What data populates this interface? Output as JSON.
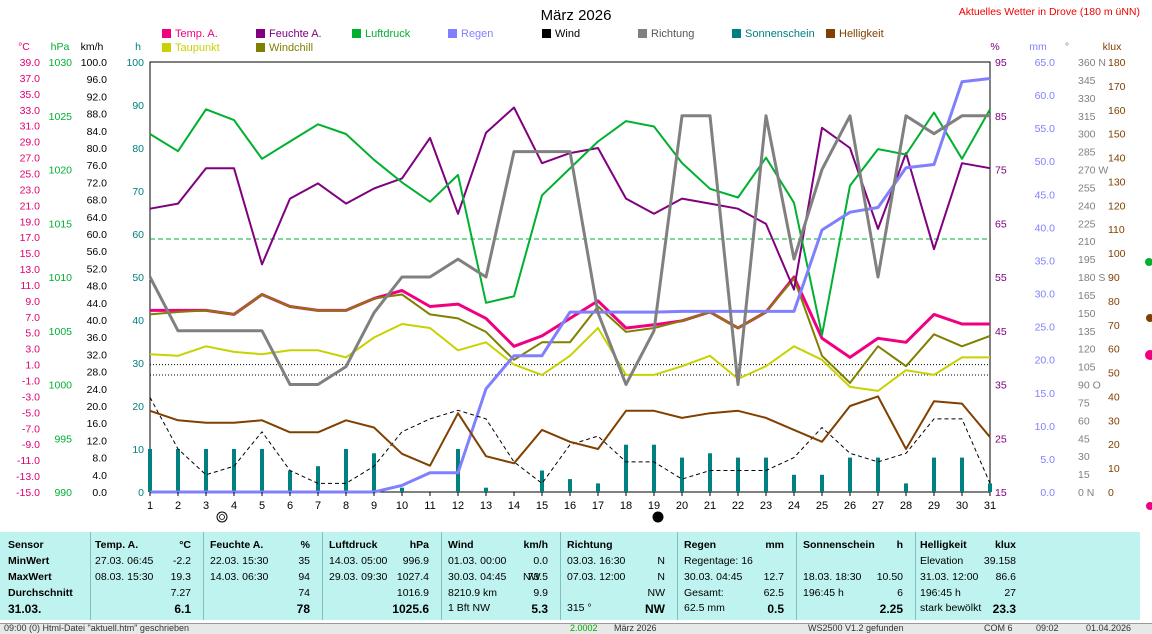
{
  "header": {
    "title": "März 2026",
    "site": "Aktuelles Wetter in Drove (180 m üNN)"
  },
  "legend": [
    {
      "label": "Temp. A.",
      "color": "#f00080"
    },
    {
      "label": "Taupunkt",
      "color": "#c8d200"
    },
    {
      "label": "Feuchte A.",
      "color": "#800080"
    },
    {
      "label": "Windchill",
      "color": "#808000"
    },
    {
      "label": "Luftdruck",
      "color": "#00b030"
    },
    {
      "label": "Regen",
      "color": "#8080ff"
    },
    {
      "label": "Wind",
      "color": "#000000"
    },
    {
      "label": "Richtung",
      "color": "#808080"
    },
    {
      "label": "Sonnenschein",
      "color": "#008080"
    },
    {
      "label": "Helligkeit",
      "color": "#804000"
    }
  ],
  "chart_data": {
    "type": "line",
    "x": [
      1,
      2,
      3,
      4,
      5,
      6,
      7,
      8,
      9,
      10,
      11,
      12,
      13,
      14,
      15,
      16,
      17,
      18,
      19,
      20,
      21,
      22,
      23,
      24,
      25,
      26,
      27,
      28,
      29,
      30,
      31
    ],
    "axes": {
      "temp_c": {
        "unit": "°C",
        "range": [
          -15,
          39
        ],
        "ticks": [
          "39.0",
          "37.0",
          "35.0",
          "33.0",
          "31.0",
          "29.0",
          "27.0",
          "25.0",
          "23.0",
          "21.0",
          "19.0",
          "17.0",
          "15.0",
          "13.0",
          "11.0",
          "9.0",
          "7.0",
          "5.0",
          "3.0",
          "1.0",
          "-1.0",
          "-3.0",
          "-5.0",
          "-7.0",
          "-9.0",
          "-11.0",
          "-13.0",
          "-15.0"
        ]
      },
      "pressure_hpa": {
        "unit": "hPa",
        "range": [
          990,
          1030
        ],
        "ticks": [
          "1030",
          "1025",
          "1020",
          "1015",
          "1010",
          "1005",
          "1000",
          "995",
          "990"
        ]
      },
      "wind_kmh": {
        "unit": "km/h",
        "range": [
          0,
          100
        ],
        "ticks": [
          "100.0",
          "96.0",
          "92.0",
          "88.0",
          "84.0",
          "80.0",
          "76.0",
          "72.0",
          "68.0",
          "64.0",
          "60.0",
          "56.0",
          "52.0",
          "48.0",
          "44.0",
          "40.0",
          "36.0",
          "32.0",
          "28.0",
          "24.0",
          "20.0",
          "16.0",
          "12.0",
          "8.0",
          "4.0",
          "0.0"
        ]
      },
      "sun_h": {
        "unit": "h",
        "range": [
          0,
          100
        ],
        "ticks": [
          "100",
          "90",
          "80",
          "70",
          "60",
          "50",
          "40",
          "30",
          "20",
          "10",
          "0"
        ]
      },
      "humidity_pct": {
        "unit": "%",
        "range": [
          15,
          100
        ],
        "ticks": [
          "95",
          "85",
          "75",
          "65",
          "55",
          "45",
          "35",
          "25",
          "15"
        ]
      },
      "rain_mm": {
        "unit": "mm",
        "range": [
          0,
          65
        ],
        "ticks": [
          "65.0",
          "60.0",
          "55.0",
          "50.0",
          "45.0",
          "40.0",
          "35.0",
          "30.0",
          "25.0",
          "20.0",
          "15.0",
          "10.0",
          "5.0",
          "0.0"
        ]
      },
      "direction_deg": {
        "unit": "°",
        "range": [
          0,
          360
        ],
        "ticks": [
          "360 N",
          "345",
          "330",
          "315",
          "300",
          "285",
          "270 W",
          "255",
          "240",
          "225",
          "210",
          "195",
          "180 S",
          "165",
          "150",
          "135",
          "120",
          "105",
          "90 O",
          "75",
          "60",
          "45",
          "30",
          "15",
          "0 N"
        ]
      },
      "brightness_klux": {
        "unit": "klux",
        "range": [
          0,
          180
        ],
        "ticks": [
          "180",
          "170",
          "160",
          "150",
          "140",
          "130",
          "120",
          "110",
          "100",
          "90",
          "80",
          "70",
          "60",
          "50",
          "40",
          "30",
          "20",
          "10",
          "0"
        ]
      }
    },
    "series": [
      {
        "name": "Temp. A.",
        "axis": "temp_c",
        "color": "#f00080",
        "width": 3,
        "values": [
          7.8,
          7.8,
          7.8,
          7.3,
          9.8,
          8.3,
          7.8,
          7.8,
          9.3,
          10.3,
          8.3,
          8.6,
          6.8,
          3.3,
          4.6,
          6.8,
          9.0,
          5.6,
          6.0,
          6.5,
          7.6,
          5.6,
          7.6,
          12.0,
          4.3,
          1.9,
          4.3,
          3.8,
          7.3,
          6.1,
          6.1
        ]
      },
      {
        "name": "Taupunkt",
        "axis": "temp_c",
        "color": "#c8d200",
        "width": 2,
        "values": [
          2.3,
          2.1,
          3.3,
          2.6,
          2.3,
          2.8,
          2.8,
          1.9,
          4.4,
          6.1,
          5.6,
          2.8,
          3.8,
          1.0,
          -0.3,
          2.1,
          5.6,
          -0.3,
          -0.3,
          0.8,
          2.1,
          -0.8,
          0.8,
          3.3,
          1.6,
          -1.8,
          -2.3,
          0.3,
          -0.3,
          1.9,
          1.9
        ]
      },
      {
        "name": "Windchill",
        "axis": "temp_c",
        "color": "#808000",
        "width": 2,
        "values": [
          7.3,
          7.6,
          7.8,
          7.3,
          9.8,
          8.3,
          7.8,
          7.8,
          9.3,
          9.8,
          7.3,
          6.8,
          5.1,
          1.6,
          3.8,
          3.8,
          8.3,
          5.1,
          5.6,
          6.5,
          7.6,
          5.6,
          7.6,
          11.8,
          2.1,
          -1.3,
          3.3,
          0.8,
          4.8,
          3.3,
          4.6
        ]
      },
      {
        "name": "Feuchte A.",
        "axis": "humidity_pct",
        "color": "#800080",
        "width": 2,
        "values": [
          71,
          72,
          79,
          79,
          60,
          73,
          76,
          72,
          75,
          77,
          85,
          70,
          86,
          91,
          80,
          82,
          83,
          73,
          70,
          73,
          72,
          71,
          68,
          55,
          87,
          83,
          67,
          82,
          63,
          80,
          79
        ]
      },
      {
        "name": "Luftdruck",
        "axis": "pressure_hpa",
        "color": "#00b030",
        "width": 2,
        "values": [
          1023.3,
          1021.7,
          1025.6,
          1024.6,
          1021.0,
          1022.6,
          1024.2,
          1023.3,
          1020.9,
          1018.8,
          1017.0,
          1019.5,
          1007.6,
          1008.2,
          1017.6,
          1020.1,
          1022.6,
          1024.5,
          1024.0,
          1020.6,
          1018.2,
          1017.4,
          1021.1,
          1016.9,
          1004.6,
          1018.5,
          1021.9,
          1021.4,
          1025.3,
          1021.0,
          1025.6
        ]
      },
      {
        "name": "Regen",
        "axis": "rain_mm",
        "color": "#8080ff",
        "width": 3,
        "values": [
          0,
          0,
          0,
          0,
          0,
          0,
          0,
          0,
          0,
          1.0,
          2.9,
          2.9,
          15.6,
          20.6,
          20.6,
          27.2,
          27.2,
          27.2,
          27.2,
          27.3,
          27.3,
          27.3,
          27.3,
          27.3,
          39.6,
          42.3,
          43.0,
          49.0,
          49.5,
          62.0,
          62.5
        ]
      },
      {
        "name": "Richtung",
        "axis": "direction_deg",
        "color": "#808080",
        "width": 3,
        "values": [
          180,
          135,
          135,
          135,
          135,
          90,
          90,
          105,
          150,
          180,
          180,
          195,
          180,
          285,
          285,
          285,
          150,
          90,
          135,
          315,
          315,
          90,
          315,
          195,
          270,
          315,
          180,
          315,
          300,
          315,
          315
        ]
      },
      {
        "name": "Wind",
        "axis": "wind_kmh",
        "color": "#000000",
        "width": 1,
        "dashed": true,
        "values": [
          22,
          10,
          4,
          6,
          14,
          5,
          2,
          2,
          6,
          14,
          17,
          19,
          17,
          7,
          2,
          11,
          13,
          7,
          7,
          3,
          5,
          5,
          5,
          8,
          15,
          9,
          7,
          9,
          17,
          17,
          2
        ]
      },
      {
        "name": "Helligkeit",
        "axis": "brightness_klux",
        "color": "#804000",
        "width": 2,
        "values": [
          34,
          30,
          29,
          29,
          30,
          25,
          25,
          30,
          27,
          16,
          11,
          33,
          15,
          12,
          26,
          21,
          18,
          34,
          34,
          31,
          33,
          34,
          31,
          26,
          21,
          36,
          40,
          18,
          38,
          37,
          23
        ]
      },
      {
        "name": "Sonnenschein",
        "axis": "sun_h",
        "color": "#008080",
        "type": "bar",
        "values": [
          10,
          10,
          10,
          10,
          10,
          5,
          6,
          10,
          9,
          1,
          0,
          10,
          1,
          0,
          5,
          3,
          2,
          11,
          11,
          8,
          9,
          8,
          8,
          4,
          4,
          8,
          8,
          2,
          8,
          8,
          2
        ]
      }
    ],
    "reference_lines": [
      {
        "axis": "humidity_pct",
        "value": 65,
        "color": "#00b030",
        "dashed": true
      },
      {
        "axis": "temp_c",
        "value": 1.0,
        "color": "#000000",
        "dotted": true
      },
      {
        "axis": "temp_c",
        "value": -0.3,
        "color": "#000000",
        "dotted": true
      }
    ],
    "grid": false
  },
  "stats": {
    "col0": {
      "h": "Sensor",
      "r1": "MinWert",
      "r2": "MaxWert",
      "r3": "Durchschnitt",
      "r4": "31.03."
    },
    "temp": {
      "h": "Temp. A.",
      "u": "°C",
      "min_t": "27.03.  06:45",
      "min_v": "-2.2",
      "max_t": "08.03.  15:30",
      "max_v": "19.3",
      "avg": "7.27",
      "cur": "6.1"
    },
    "hum": {
      "h": "Feuchte A.",
      "u": "%",
      "min_t": "22.03.  15:30",
      "min_v": "35",
      "max_t": "14.03.  06:30",
      "max_v": "94",
      "avg": "74",
      "cur": "78"
    },
    "press": {
      "h": "Luftdruck",
      "u": "hPa",
      "min_t": "14.03.  05:00",
      "min_v": "996.9",
      "max_t": "29.03.  09:30",
      "max_v": "1027.4",
      "avg": "1016.9",
      "cur": "1025.6"
    },
    "wind": {
      "h": "Wind",
      "u": "km/h",
      "min_t": "01.03.  00:00",
      "min_v": "0.0",
      "max_t": "30.03.  04:45",
      "max_v": "73.5",
      "max_dir": "NW",
      "avg_km": "8210.9 km",
      "avg": "9.9",
      "cur_bft": "1 Bft NW",
      "cur": "5.3"
    },
    "dir": {
      "h": "Richtung",
      "min_t": "03.03.  16:30",
      "min_v": "N",
      "max_t": "07.03.  12:00",
      "max_v": "N",
      "avg": "NW",
      "cur_deg": "315 °",
      "cur": "NW"
    },
    "rain": {
      "h": "Regen",
      "u": "mm",
      "r1a": "Regentage: 16",
      "max_t": "30.03.  04:45",
      "max_v": "12.7",
      "tot_l": "Gesamt:",
      "tot_v": "62.5",
      "cur_l": "62.5 mm",
      "cur": "0.5"
    },
    "sun": {
      "h": "Sonnenschein",
      "u": "h",
      "max_t": "18.03.  18:30",
      "max_v": "10.50",
      "r3a": "196:45 h",
      "r3b": "6",
      "cur": "2.25"
    },
    "light": {
      "h": "Helligkeit",
      "u": "klux",
      "r1a": "Elevation",
      "r1b": "39.158",
      "max_t": "31.03.  12:00",
      "max_v": "86.6",
      "r3a": "196:45 h",
      "r3b": "27",
      "r4a": "stark bewölkt",
      "cur": "23.3"
    }
  },
  "statusbar": [
    "09:00  (0)  Html-Datei \"aktuell.htm\" geschrieben",
    "2.0002",
    "März 2026",
    "WS2500 V1.2 gefunden",
    "COM 6",
    "09:02",
    "01.04.2026"
  ]
}
